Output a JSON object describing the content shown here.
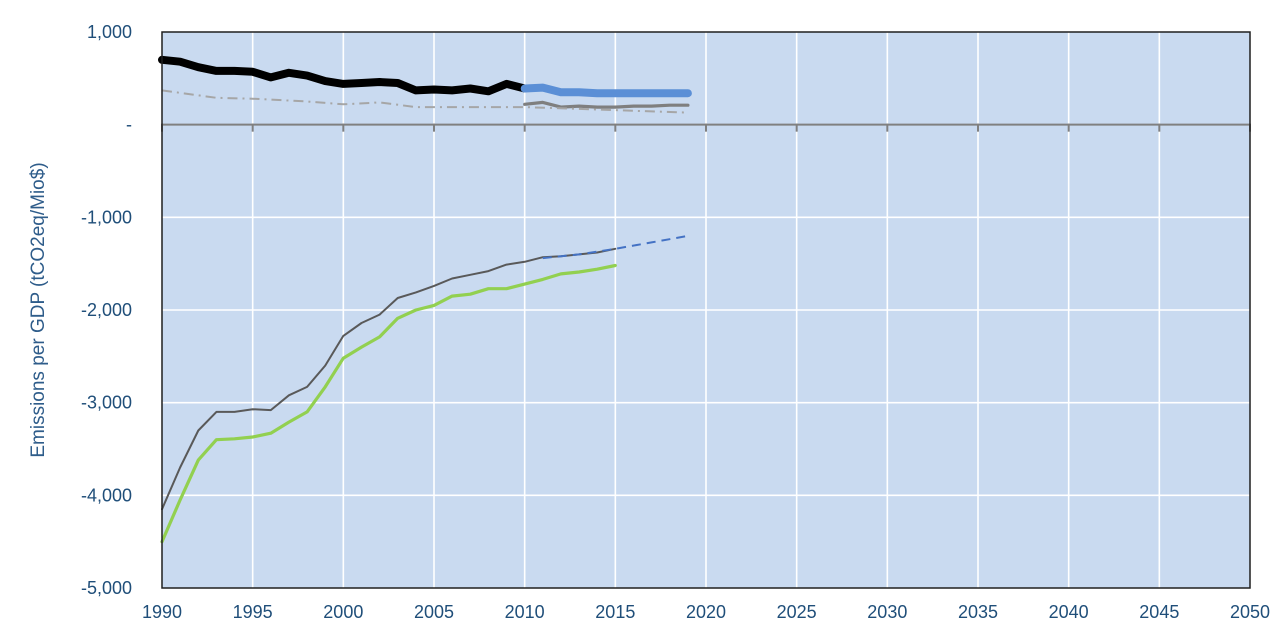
{
  "chart_data": {
    "type": "line",
    "title": "",
    "xlabel": "",
    "ylabel": "Emissions per GDP (tCO2eq/Mio$)",
    "xlim": [
      1990,
      2050
    ],
    "ylim": [
      -5000,
      1000
    ],
    "x_ticks": [
      "1990",
      "1995",
      "2000",
      "2005",
      "2010",
      "2015",
      "2020",
      "2025",
      "2030",
      "2035",
      "2040",
      "2045",
      "2050"
    ],
    "y_ticks": [
      {
        "value": 1000,
        "label": "1,000"
      },
      {
        "value": 0,
        "label": "-"
      },
      {
        "value": -1000,
        "label": "-1,000"
      },
      {
        "value": -2000,
        "label": "-2,000"
      },
      {
        "value": -3000,
        "label": "-3,000"
      },
      {
        "value": -4000,
        "label": "-4,000"
      },
      {
        "value": -5000,
        "label": "-5,000"
      }
    ],
    "grid": true,
    "background": "#c9daf0",
    "series": [
      {
        "key": "black-thick",
        "color": "#000000",
        "style": "solid",
        "weight": "thick",
        "points": [
          [
            1990,
            700
          ],
          [
            1991,
            680
          ],
          [
            1992,
            620
          ],
          [
            1993,
            580
          ],
          [
            1994,
            580
          ],
          [
            1995,
            570
          ],
          [
            1996,
            510
          ],
          [
            1997,
            560
          ],
          [
            1998,
            530
          ],
          [
            1999,
            470
          ],
          [
            2000,
            440
          ],
          [
            2001,
            450
          ],
          [
            2002,
            460
          ],
          [
            2003,
            450
          ],
          [
            2004,
            370
          ],
          [
            2005,
            380
          ],
          [
            2006,
            370
          ],
          [
            2007,
            390
          ],
          [
            2008,
            360
          ],
          [
            2009,
            440
          ],
          [
            2010,
            390
          ]
        ]
      },
      {
        "key": "blue-thick",
        "color": "#5b8fd6",
        "style": "solid",
        "weight": "thick",
        "points": [
          [
            2010,
            390
          ],
          [
            2011,
            400
          ],
          [
            2012,
            350
          ],
          [
            2013,
            350
          ],
          [
            2014,
            340
          ],
          [
            2015,
            340
          ],
          [
            2016,
            340
          ],
          [
            2017,
            340
          ],
          [
            2018,
            340
          ],
          [
            2019,
            340
          ]
        ]
      },
      {
        "key": "gray-medium",
        "color": "#7f7f7f",
        "style": "solid",
        "weight": "medium",
        "points": [
          [
            2010,
            220
          ],
          [
            2011,
            240
          ],
          [
            2012,
            190
          ],
          [
            2013,
            200
          ],
          [
            2014,
            190
          ],
          [
            2015,
            190
          ],
          [
            2016,
            200
          ],
          [
            2017,
            200
          ],
          [
            2018,
            210
          ],
          [
            2019,
            210
          ]
        ]
      },
      {
        "key": "gray-dashdot",
        "color": "#a6a6a6",
        "style": "dashdot",
        "weight": "thin",
        "points": [
          [
            1990,
            370
          ],
          [
            1993,
            290
          ],
          [
            1995,
            280
          ],
          [
            1998,
            250
          ],
          [
            2000,
            220
          ],
          [
            2002,
            240
          ],
          [
            2004,
            190
          ],
          [
            2008,
            190
          ],
          [
            2010,
            190
          ],
          [
            2013,
            170
          ],
          [
            2016,
            150
          ],
          [
            2019,
            130
          ]
        ]
      },
      {
        "key": "dark-gray-thin",
        "color": "#595959",
        "style": "solid",
        "weight": "thin",
        "points": [
          [
            1990,
            -4150
          ],
          [
            1991,
            -3700
          ],
          [
            1992,
            -3300
          ],
          [
            1993,
            -3100
          ],
          [
            1994,
            -3100
          ],
          [
            1995,
            -3070
          ],
          [
            1996,
            -3080
          ],
          [
            1997,
            -2920
          ],
          [
            1998,
            -2830
          ],
          [
            1999,
            -2600
          ],
          [
            2000,
            -2280
          ],
          [
            2001,
            -2140
          ],
          [
            2002,
            -2050
          ],
          [
            2003,
            -1870
          ],
          [
            2004,
            -1810
          ],
          [
            2005,
            -1740
          ],
          [
            2006,
            -1660
          ],
          [
            2007,
            -1620
          ],
          [
            2008,
            -1580
          ],
          [
            2009,
            -1510
          ],
          [
            2010,
            -1480
          ],
          [
            2011,
            -1430
          ],
          [
            2012,
            -1420
          ],
          [
            2013,
            -1400
          ],
          [
            2014,
            -1380
          ],
          [
            2015,
            -1340
          ]
        ]
      },
      {
        "key": "blue-dashed",
        "color": "#4472c4",
        "style": "dashed",
        "weight": "thin",
        "points": [
          [
            2011,
            -1440
          ],
          [
            2013,
            -1400
          ],
          [
            2015,
            -1340
          ],
          [
            2017,
            -1270
          ],
          [
            2019,
            -1200
          ]
        ]
      },
      {
        "key": "green",
        "color": "#92d050",
        "style": "solid",
        "weight": "medium",
        "points": [
          [
            1990,
            -4500
          ],
          [
            1991,
            -4050
          ],
          [
            1992,
            -3620
          ],
          [
            1993,
            -3400
          ],
          [
            1994,
            -3390
          ],
          [
            1995,
            -3370
          ],
          [
            1996,
            -3330
          ],
          [
            1997,
            -3210
          ],
          [
            1998,
            -3100
          ],
          [
            1999,
            -2830
          ],
          [
            2000,
            -2520
          ],
          [
            2001,
            -2400
          ],
          [
            2002,
            -2290
          ],
          [
            2003,
            -2090
          ],
          [
            2004,
            -2000
          ],
          [
            2005,
            -1950
          ],
          [
            2006,
            -1850
          ],
          [
            2007,
            -1830
          ],
          [
            2008,
            -1770
          ],
          [
            2009,
            -1770
          ],
          [
            2010,
            -1720
          ],
          [
            2011,
            -1670
          ],
          [
            2012,
            -1610
          ],
          [
            2013,
            -1590
          ],
          [
            2014,
            -1560
          ],
          [
            2015,
            -1520
          ]
        ]
      }
    ]
  }
}
